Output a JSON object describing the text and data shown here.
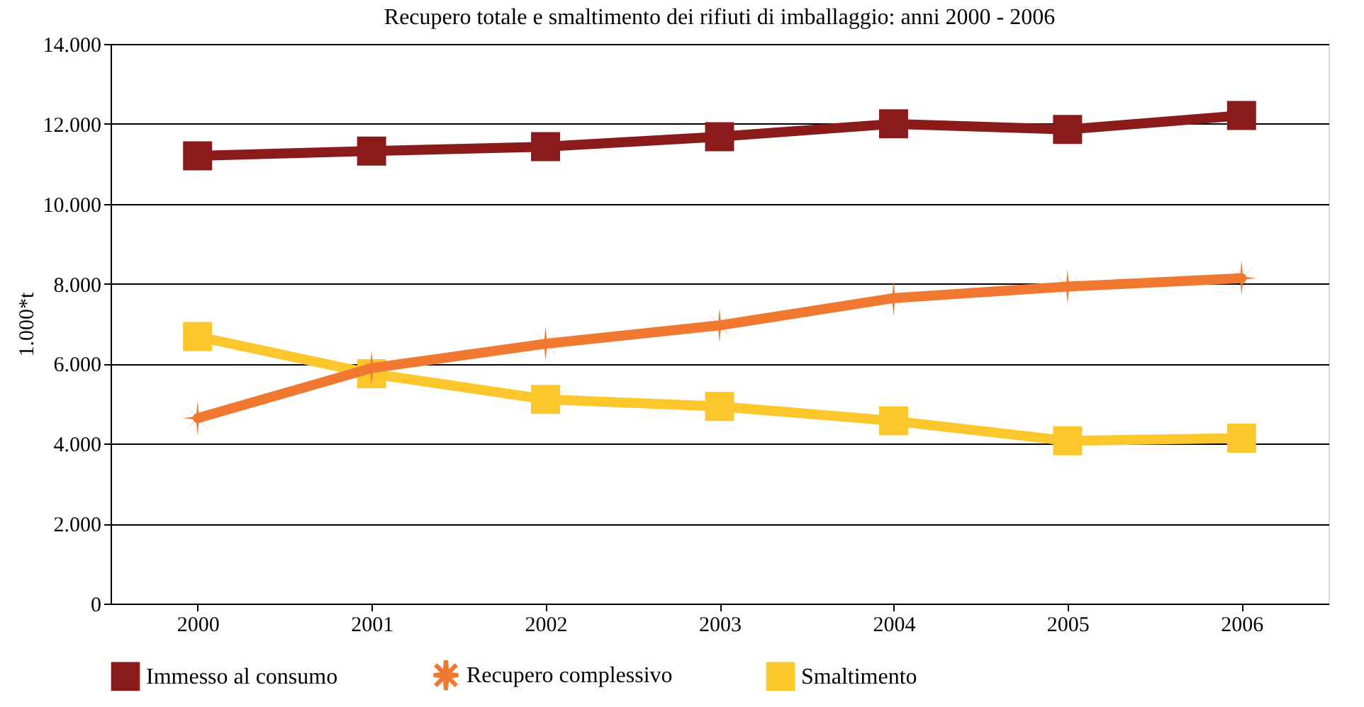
{
  "chart_data": {
    "type": "line",
    "title": "Recupero totale e smaltimento dei rifiuti di imballaggio: anni 2000 - 2006",
    "ylabel": "1.000*t",
    "categories": [
      "2000",
      "2001",
      "2002",
      "2003",
      "2004",
      "2005",
      "2006"
    ],
    "series": [
      {
        "name": "Immesso al consumo",
        "color": "#8b1a1a",
        "marker": "square",
        "values": [
          11200,
          11320,
          11430,
          11680,
          12000,
          11860,
          12210
        ]
      },
      {
        "name": "Recupero complessivo",
        "color": "#f07830",
        "marker": "cross",
        "values": [
          4640,
          5890,
          6500,
          6960,
          7640,
          7930,
          8140
        ]
      },
      {
        "name": "Smaltimento",
        "color": "#fcc72c",
        "marker": "square",
        "values": [
          6680,
          5750,
          5110,
          4930,
          4570,
          4070,
          4140
        ]
      }
    ],
    "ylim": [
      0,
      14000
    ],
    "yticks": [
      {
        "value": 0,
        "label": "0"
      },
      {
        "value": 2000,
        "label": "2.000"
      },
      {
        "value": 4000,
        "label": "4.000"
      },
      {
        "value": 6000,
        "label": "6.000"
      },
      {
        "value": 8000,
        "label": "8.000"
      },
      {
        "value": 10000,
        "label": "10.000"
      },
      {
        "value": 12000,
        "label": "12.000"
      },
      {
        "value": 14000,
        "label": "14.000"
      }
    ],
    "grid": "y",
    "legend": "bottom",
    "line_style": "solid"
  }
}
